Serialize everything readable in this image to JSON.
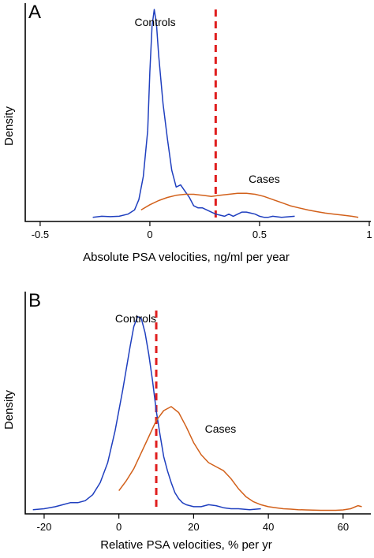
{
  "colors": {
    "controls": "#1f3fbf",
    "cases": "#d2601a",
    "cutoff": "#e01e1e"
  },
  "chart_data": [
    {
      "type": "line",
      "panel_label": "A",
      "xlabel": "Absolute PSA velocities, ng/ml per year",
      "ylabel": "Density",
      "xlim": [
        -0.55,
        1.0
      ],
      "ylim": [
        0,
        1.0
      ],
      "x_ticks": [
        -0.5,
        0,
        0.5,
        1
      ],
      "x_tick_labels": [
        "-0.5",
        "0",
        "0.5",
        "1"
      ],
      "threshold_x": 0.3,
      "series": [
        {
          "name": "Controls",
          "label_x": -0.07,
          "label_y": 0.92,
          "x": [
            -0.26,
            -0.22,
            -0.18,
            -0.14,
            -0.1,
            -0.07,
            -0.05,
            -0.03,
            -0.01,
            0.0,
            0.01,
            0.02,
            0.03,
            0.04,
            0.06,
            0.08,
            0.1,
            0.12,
            0.14,
            0.16,
            0.18,
            0.2,
            0.22,
            0.24,
            0.26,
            0.28,
            0.3,
            0.32,
            0.34,
            0.36,
            0.38,
            0.4,
            0.42,
            0.44,
            0.46,
            0.48,
            0.5,
            0.52,
            0.54,
            0.56,
            0.6,
            0.66
          ],
          "y": [
            0.005,
            0.01,
            0.008,
            0.01,
            0.02,
            0.04,
            0.09,
            0.2,
            0.42,
            0.7,
            0.92,
            1.0,
            0.93,
            0.78,
            0.55,
            0.38,
            0.23,
            0.15,
            0.16,
            0.13,
            0.1,
            0.06,
            0.05,
            0.05,
            0.04,
            0.03,
            0.02,
            0.015,
            0.01,
            0.02,
            0.01,
            0.02,
            0.03,
            0.03,
            0.025,
            0.02,
            0.01,
            0.005,
            0.005,
            0.01,
            0.005,
            0.01
          ]
        },
        {
          "name": "Cases",
          "label_x": 0.45,
          "label_y": 0.17,
          "x": [
            -0.04,
            0.0,
            0.04,
            0.08,
            0.12,
            0.16,
            0.2,
            0.24,
            0.28,
            0.32,
            0.36,
            0.4,
            0.44,
            0.48,
            0.52,
            0.56,
            0.6,
            0.64,
            0.68,
            0.72,
            0.76,
            0.8,
            0.84,
            0.88,
            0.92,
            0.95
          ],
          "y": [
            0.04,
            0.065,
            0.085,
            0.1,
            0.11,
            0.115,
            0.115,
            0.11,
            0.105,
            0.11,
            0.115,
            0.12,
            0.12,
            0.115,
            0.105,
            0.09,
            0.075,
            0.06,
            0.05,
            0.04,
            0.032,
            0.025,
            0.02,
            0.015,
            0.01,
            0.005
          ]
        }
      ]
    },
    {
      "type": "line",
      "panel_label": "B",
      "xlabel": "Relative PSA velocities, % per yr",
      "ylabel": "Density",
      "xlim": [
        -24,
        67
      ],
      "ylim": [
        0,
        1.0
      ],
      "x_ticks": [
        -20,
        0,
        20,
        40,
        60
      ],
      "x_tick_labels": [
        "-20",
        "0",
        "20",
        "40",
        "60"
      ],
      "threshold_x": 10,
      "series": [
        {
          "name": "Controls",
          "label_x": -1,
          "label_y": 0.94,
          "x": [
            -23,
            -20,
            -17,
            -15,
            -13,
            -11,
            -9,
            -7,
            -5,
            -3,
            -1,
            1,
            3,
            4,
            5,
            6,
            7,
            8,
            9,
            10,
            11,
            12,
            13,
            14,
            15,
            16,
            17,
            18,
            20,
            22,
            24,
            26,
            28,
            30,
            32,
            35,
            38
          ],
          "y": [
            0.005,
            0.01,
            0.02,
            0.03,
            0.04,
            0.04,
            0.05,
            0.08,
            0.14,
            0.24,
            0.4,
            0.6,
            0.82,
            0.92,
            0.97,
            0.96,
            0.89,
            0.78,
            0.65,
            0.5,
            0.38,
            0.27,
            0.2,
            0.14,
            0.09,
            0.06,
            0.04,
            0.03,
            0.02,
            0.02,
            0.03,
            0.025,
            0.015,
            0.01,
            0.01,
            0.005,
            0.01
          ]
        },
        {
          "name": "Cases",
          "label_x": 23,
          "label_y": 0.39,
          "x": [
            0,
            2,
            4,
            6,
            8,
            10,
            12,
            14,
            16,
            18,
            20,
            22,
            24,
            26,
            28,
            30,
            32,
            34,
            36,
            38,
            40,
            42,
            44,
            46,
            48,
            50,
            52,
            54,
            56,
            58,
            60,
            62,
            64,
            65
          ],
          "y": [
            0.1,
            0.15,
            0.21,
            0.29,
            0.37,
            0.45,
            0.5,
            0.52,
            0.49,
            0.42,
            0.34,
            0.28,
            0.24,
            0.22,
            0.2,
            0.16,
            0.11,
            0.07,
            0.045,
            0.03,
            0.02,
            0.015,
            0.01,
            0.008,
            0.005,
            0.004,
            0.003,
            0.002,
            0.002,
            0.002,
            0.004,
            0.01,
            0.025,
            0.02
          ]
        }
      ]
    }
  ]
}
